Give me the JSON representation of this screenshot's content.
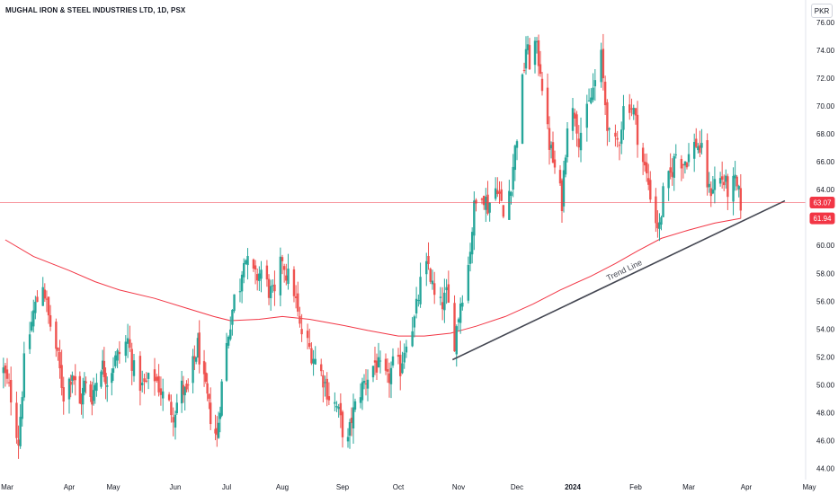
{
  "header": {
    "symbol_title": "MUGHAL IRON & STEEL INDUSTRIES LTD, 1D, PSX",
    "currency_label": "PKR"
  },
  "chart_data": {
    "type": "candlestick",
    "title": "MUGHAL IRON & STEEL INDUSTRIES LTD, 1D, PSX",
    "currency": "PKR",
    "interval": "1D",
    "exchange": "PSX",
    "x_tick_labels": [
      "Mar",
      "Apr",
      "May",
      "Jun",
      "Jul",
      "Aug",
      "Sep",
      "Oct",
      "Nov",
      "Dec",
      "2024",
      "Feb",
      "Mar",
      "Apr",
      "May"
    ],
    "x_tick_dates": [
      "2023-03-01",
      "2023-04-03",
      "2023-05-02",
      "2023-06-01",
      "2023-07-03",
      "2023-08-01",
      "2023-09-01",
      "2023-10-02",
      "2023-11-01",
      "2023-12-01",
      "2024-01-01",
      "2024-02-01",
      "2024-03-01",
      "2024-04-01",
      "2024-05-02"
    ],
    "y_tick_labels": [
      "44.00",
      "46.00",
      "48.00",
      "50.00",
      "52.00",
      "54.00",
      "56.00",
      "58.00",
      "60.00",
      "62.00",
      "64.00",
      "66.00",
      "68.00",
      "70.00",
      "72.00",
      "74.00",
      "76.00"
    ],
    "ylim": [
      43.2,
      77.6
    ],
    "grid": false,
    "colors": {
      "up": "#26a69a",
      "down": "#ef5350",
      "moving_average": "#f23645",
      "trend_line": "#434651",
      "last_price": "#f23645"
    },
    "last_price": {
      "value": 63.07,
      "label": "63.07"
    },
    "moving_average": {
      "value": 61.94,
      "label": "61.94",
      "points": [
        [
          "2023-02-28",
          60.4
        ],
        [
          "2023-03-15",
          59.2
        ],
        [
          "2023-04-03",
          58.2
        ],
        [
          "2023-04-20",
          57.4
        ],
        [
          "2023-05-05",
          56.8
        ],
        [
          "2023-05-22",
          56.2
        ],
        [
          "2023-06-08",
          55.5
        ],
        [
          "2023-06-25",
          54.9
        ],
        [
          "2023-07-05",
          54.6
        ],
        [
          "2023-07-20",
          54.7
        ],
        [
          "2023-08-01",
          54.9
        ],
        [
          "2023-08-15",
          54.7
        ],
        [
          "2023-08-31",
          54.3
        ],
        [
          "2023-09-15",
          53.9
        ],
        [
          "2023-10-02",
          53.5
        ],
        [
          "2023-10-15",
          53.5
        ],
        [
          "2023-10-28",
          53.7
        ],
        [
          "2023-11-10",
          54.2
        ],
        [
          "2023-11-25",
          54.9
        ],
        [
          "2023-12-10",
          55.8
        ],
        [
          "2023-12-25",
          56.8
        ],
        [
          "2024-01-10",
          57.8
        ],
        [
          "2024-01-22",
          58.7
        ],
        [
          "2024-02-02",
          59.6
        ],
        [
          "2024-02-15",
          60.5
        ],
        [
          "2024-03-01",
          61.1
        ],
        [
          "2024-03-15",
          61.6
        ],
        [
          "2024-03-29",
          61.94
        ]
      ]
    },
    "trend_line": {
      "label": "Trend Line",
      "start": [
        "2023-10-29",
        51.8
      ],
      "end": [
        "2024-04-20",
        63.2
      ]
    },
    "segments": [
      [
        "2023-02-27",
        51.0
      ],
      [
        "2023-03-03",
        49.2
      ],
      [
        "2023-03-07",
        46.0
      ],
      [
        "2023-03-10",
        51.5
      ],
      [
        "2023-03-15",
        55.2
      ],
      [
        "2023-03-20",
        57.4
      ],
      [
        "2023-03-23",
        54.8
      ],
      [
        "2023-03-27",
        52.6
      ],
      [
        "2023-03-31",
        49.3
      ],
      [
        "2023-04-05",
        51.0
      ],
      [
        "2023-04-10",
        48.5
      ],
      [
        "2023-04-13",
        50.0
      ],
      [
        "2023-04-18",
        49.2
      ],
      [
        "2023-04-24",
        51.6
      ],
      [
        "2023-04-28",
        50.4
      ],
      [
        "2023-05-03",
        51.8
      ],
      [
        "2023-05-09",
        53.2
      ],
      [
        "2023-05-12",
        51.0
      ],
      [
        "2023-05-16",
        49.8
      ],
      [
        "2023-05-22",
        50.6
      ],
      [
        "2023-05-26",
        49.2
      ],
      [
        "2023-05-31",
        48.0
      ],
      [
        "2023-06-05",
        49.8
      ],
      [
        "2023-06-08",
        49.2
      ],
      [
        "2023-06-12",
        51.3
      ],
      [
        "2023-06-15",
        52.8
      ],
      [
        "2023-06-19",
        50.0
      ],
      [
        "2023-06-23",
        47.8
      ],
      [
        "2023-06-27",
        46.2
      ],
      [
        "2023-06-30",
        50.0
      ],
      [
        "2023-07-04",
        53.8
      ],
      [
        "2023-07-07",
        56.2
      ],
      [
        "2023-07-10",
        57.2
      ],
      [
        "2023-07-12",
        59.5
      ],
      [
        "2023-07-14",
        58.6
      ],
      [
        "2023-07-18",
        57.6
      ],
      [
        "2023-07-21",
        58.2
      ],
      [
        "2023-07-25",
        56.8
      ],
      [
        "2023-07-28",
        56.2
      ],
      [
        "2023-08-01",
        59.2
      ],
      [
        "2023-08-03",
        58.0
      ],
      [
        "2023-08-07",
        56.8
      ],
      [
        "2023-08-10",
        54.0
      ],
      [
        "2023-08-15",
        52.6
      ],
      [
        "2023-08-18",
        51.8
      ],
      [
        "2023-08-22",
        50.5
      ],
      [
        "2023-08-25",
        49.2
      ],
      [
        "2023-08-29",
        48.4
      ],
      [
        "2023-09-01",
        46.8
      ],
      [
        "2023-09-04",
        45.8
      ],
      [
        "2023-09-06",
        47.6
      ],
      [
        "2023-09-11",
        49.6
      ],
      [
        "2023-09-14",
        50.4
      ],
      [
        "2023-09-19",
        51.6
      ],
      [
        "2023-09-22",
        51.0
      ],
      [
        "2023-09-26",
        50.2
      ],
      [
        "2023-09-29",
        51.4
      ],
      [
        "2023-10-03",
        51.2
      ],
      [
        "2023-10-06",
        53.4
      ],
      [
        "2023-10-10",
        54.6
      ],
      [
        "2023-10-13",
        57.2
      ],
      [
        "2023-10-17",
        58.6
      ],
      [
        "2023-10-20",
        56.2
      ],
      [
        "2023-10-23",
        55.6
      ],
      [
        "2023-10-26",
        56.4
      ],
      [
        "2023-10-30",
        53.2
      ],
      [
        "2023-11-02",
        56.0
      ],
      [
        "2023-11-06",
        58.6
      ],
      [
        "2023-11-09",
        62.6
      ],
      [
        "2023-11-13",
        64.0
      ],
      [
        "2023-11-16",
        62.8
      ],
      [
        "2023-11-21",
        64.4
      ],
      [
        "2023-11-24",
        62.0
      ],
      [
        "2023-11-28",
        64.6
      ],
      [
        "2023-12-01",
        68.0
      ],
      [
        "2023-12-04",
        71.6
      ],
      [
        "2023-12-06",
        74.2
      ],
      [
        "2023-12-08",
        73.2
      ],
      [
        "2023-12-11",
        74.4
      ],
      [
        "2023-12-14",
        72.8
      ],
      [
        "2023-12-18",
        68.0
      ],
      [
        "2023-12-21",
        66.0
      ],
      [
        "2023-12-26",
        63.2
      ],
      [
        "2023-12-29",
        69.0
      ],
      [
        "2024-01-02",
        69.6
      ],
      [
        "2024-01-04",
        67.8
      ],
      [
        "2024-01-08",
        69.4
      ],
      [
        "2024-01-11",
        71.2
      ],
      [
        "2024-01-15",
        73.4
      ],
      [
        "2024-01-17",
        70.2
      ],
      [
        "2024-01-20",
        66.4
      ],
      [
        "2024-01-24",
        67.8
      ],
      [
        "2024-01-27",
        70.8
      ],
      [
        "2024-01-31",
        69.6
      ],
      [
        "2024-02-02",
        68.0
      ],
      [
        "2024-02-05",
        66.0
      ],
      [
        "2024-02-08",
        64.4
      ],
      [
        "2024-02-12",
        61.8
      ],
      [
        "2024-02-14",
        61.2
      ],
      [
        "2024-02-16",
        63.6
      ],
      [
        "2024-02-20",
        65.0
      ],
      [
        "2024-02-23",
        66.6
      ],
      [
        "2024-02-27",
        66.0
      ],
      [
        "2024-03-01",
        66.4
      ],
      [
        "2024-03-05",
        67.4
      ],
      [
        "2024-03-08",
        66.6
      ],
      [
        "2024-03-12",
        63.8
      ],
      [
        "2024-03-15",
        64.6
      ],
      [
        "2024-03-19",
        64.8
      ],
      [
        "2024-03-22",
        64.0
      ],
      [
        "2024-03-26",
        64.4
      ],
      [
        "2024-03-29",
        63.07
      ]
    ]
  }
}
